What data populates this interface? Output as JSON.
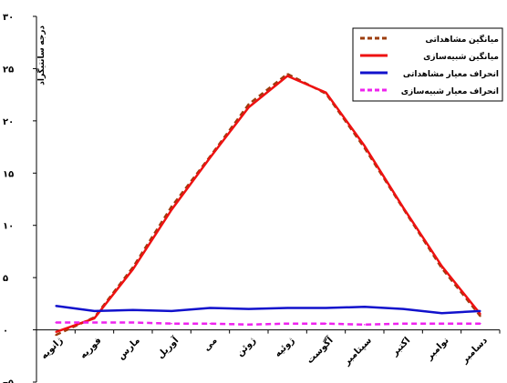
{
  "chart_data": {
    "type": "line",
    "ylabel": "درجه سانتیگراد",
    "ylim": [
      -5,
      30
    ],
    "yticks": [
      {
        "value": 30,
        "label": "۳۰"
      },
      {
        "value": 25,
        "label": "۲۵"
      },
      {
        "value": 20,
        "label": "۲۰"
      },
      {
        "value": 15,
        "label": "۱۵"
      },
      {
        "value": 10,
        "label": "۱۰"
      },
      {
        "value": 5,
        "label": "۵"
      },
      {
        "value": 0,
        "label": "۰"
      },
      {
        "value": -5,
        "label": "−۵"
      }
    ],
    "categories": [
      "ژانویه",
      "فوریه",
      "مارس",
      "آوریل",
      "می",
      "ژوئن",
      "ژوئیه",
      "آگوست",
      "سپتامبر",
      "اکتبر",
      "نوامبر",
      "دسامبر"
    ],
    "grid": false,
    "legend_position": "top-right",
    "series": [
      {
        "name": "میانگین مشاهداتی",
        "color": "#9c3d0e",
        "dash": "dashed",
        "values": [
          -0.5,
          1.2,
          6.0,
          11.8,
          16.6,
          21.6,
          24.5,
          22.6,
          17.4,
          11.6,
          5.9,
          1.3
        ]
      },
      {
        "name": "میانگین شبیه‌سازی",
        "color": "#ee1111",
        "dash": "solid",
        "values": [
          -0.2,
          1.1,
          5.8,
          11.5,
          16.5,
          21.3,
          24.3,
          22.7,
          17.6,
          11.7,
          6.1,
          1.5
        ]
      },
      {
        "name": "انحراف معیار مشاهداتی",
        "color": "#1111cc",
        "dash": "solid",
        "values": [
          2.3,
          1.8,
          1.9,
          1.8,
          2.1,
          2.0,
          2.1,
          2.1,
          2.2,
          2.0,
          1.6,
          1.8
        ]
      },
      {
        "name": "انحراف معیار شبیه‌سازی",
        "color": "#ee22ee",
        "dash": "dashed",
        "values": [
          0.7,
          0.7,
          0.7,
          0.6,
          0.6,
          0.5,
          0.6,
          0.6,
          0.5,
          0.6,
          0.6,
          0.6
        ]
      }
    ]
  }
}
